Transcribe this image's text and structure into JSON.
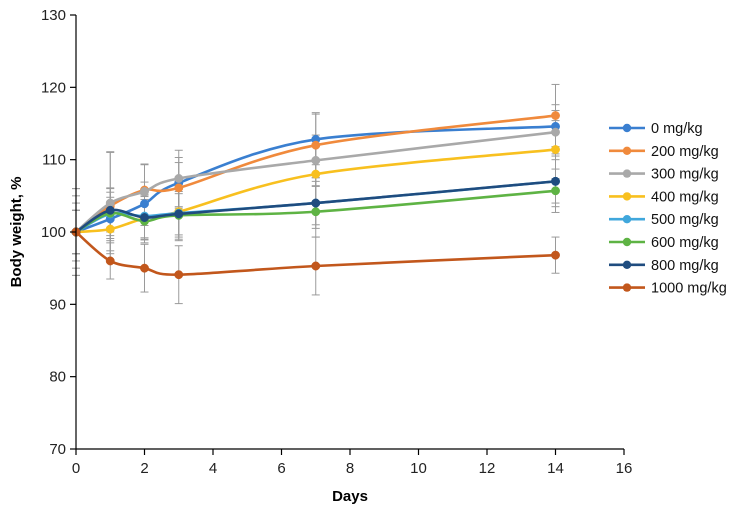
{
  "chart_data": {
    "type": "line",
    "title": "",
    "xlabel": "Days",
    "ylabel": "Body weight, %",
    "xlim": [
      0,
      16
    ],
    "ylim": [
      70,
      130
    ],
    "xticks": [
      "0",
      "2",
      "4",
      "6",
      "8",
      "10",
      "12",
      "14",
      "16"
    ],
    "yticks": [
      "70",
      "80",
      "90",
      "100",
      "110",
      "120",
      "130"
    ],
    "grid": false,
    "legend_position": "right",
    "x": [
      0,
      1,
      2,
      3,
      7,
      14
    ],
    "series": [
      {
        "name": "0 mg/kg",
        "color": "#3a7fd0",
        "values": [
          100,
          101.8,
          103.9,
          106.8,
          112.8,
          114.6
        ],
        "err": [
          6.0,
          3.0,
          3.0,
          3.5,
          3.5,
          3.0
        ]
      },
      {
        "name": "200 mg/kg",
        "color": "#f08a3c",
        "values": [
          100,
          103.6,
          105.8,
          106.1,
          112.0,
          116.1
        ],
        "err": [
          6.0,
          7.5,
          3.5,
          3.5,
          4.5,
          4.3
        ]
      },
      {
        "name": "300 mg/kg",
        "color": "#a9a9a9",
        "values": [
          100,
          104.0,
          105.6,
          107.4,
          109.9,
          113.8
        ],
        "err": [
          5.0,
          7.0,
          3.8,
          3.9,
          3.5,
          3.0
        ]
      },
      {
        "name": "400 mg/kg",
        "color": "#f8c01f",
        "values": [
          100,
          100.4,
          101.9,
          102.8,
          108.0,
          111.4
        ],
        "err": [
          3.0,
          3.0,
          3.0,
          4.0,
          4.0,
          4.0
        ]
      },
      {
        "name": "500 mg/kg",
        "color": "#40a7dc",
        "values": [
          100,
          102.5,
          102.2,
          102.6,
          104.0,
          107.0
        ],
        "err": [
          3.0,
          3.0,
          3.0,
          3.0,
          3.0,
          3.0
        ]
      },
      {
        "name": "600 mg/kg",
        "color": "#5eb344",
        "values": [
          100,
          102.6,
          101.5,
          102.3,
          102.8,
          105.7
        ],
        "err": [
          3.0,
          3.5,
          3.0,
          3.0,
          3.5,
          3.0
        ]
      },
      {
        "name": "800 mg/kg",
        "color": "#1f4c7f",
        "values": [
          100,
          103.0,
          102.0,
          102.5,
          104.0,
          107.0
        ],
        "err": [
          3.0,
          3.0,
          3.0,
          3.5,
          3.5,
          3.5
        ]
      },
      {
        "name": "1000 mg/kg",
        "color": "#c2571c",
        "values": [
          100,
          96.0,
          95.0,
          94.1,
          95.3,
          96.8
        ],
        "err": [
          4.0,
          2.5,
          3.3,
          4.0,
          4.0,
          2.5
        ]
      }
    ]
  }
}
